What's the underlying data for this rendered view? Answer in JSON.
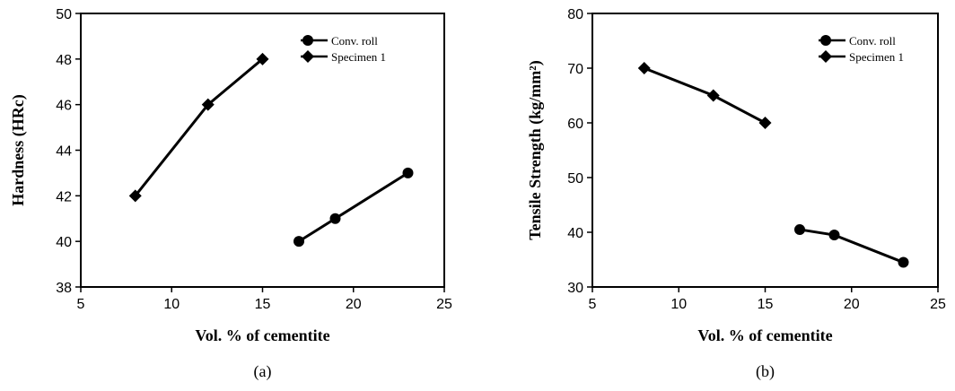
{
  "chart_data": [
    {
      "type": "line",
      "panel_label": "(a)",
      "xlabel": "Vol. %  of cementite",
      "ylabel": "Hardness (HRc)",
      "xlim": [
        5,
        25
      ],
      "ylim": [
        38,
        50
      ],
      "xticks": [
        "5",
        "10",
        "15",
        "20",
        "25"
      ],
      "yticks": [
        "38",
        "40",
        "42",
        "44",
        "46",
        "48",
        "50"
      ],
      "grid": false,
      "legend_position": "top-right",
      "series": [
        {
          "name": "Conv. roll",
          "marker": "circle",
          "points": [
            {
              "x": 17,
              "y": 40
            },
            {
              "x": 19,
              "y": 41
            },
            {
              "x": 23,
              "y": 43
            }
          ]
        },
        {
          "name": "Specimen 1",
          "marker": "diamond",
          "points": [
            {
              "x": 8,
              "y": 42
            },
            {
              "x": 12,
              "y": 46
            },
            {
              "x": 15,
              "y": 48
            }
          ]
        }
      ]
    },
    {
      "type": "line",
      "panel_label": "(b)",
      "xlabel": "Vol. %  of cementite",
      "ylabel": "Tensile Strength (kg/mm²)",
      "xlim": [
        5,
        25
      ],
      "ylim": [
        30,
        80
      ],
      "xticks": [
        "5",
        "10",
        "15",
        "20",
        "25"
      ],
      "yticks": [
        "30",
        "40",
        "50",
        "60",
        "70",
        "80"
      ],
      "grid": false,
      "legend_position": "top-right",
      "series": [
        {
          "name": "Conv. roll",
          "marker": "circle",
          "points": [
            {
              "x": 17,
              "y": 40.5
            },
            {
              "x": 19,
              "y": 39.5
            },
            {
              "x": 23,
              "y": 34.5
            }
          ]
        },
        {
          "name": "Specimen 1",
          "marker": "diamond",
          "points": [
            {
              "x": 8,
              "y": 70
            },
            {
              "x": 12,
              "y": 65
            },
            {
              "x": 15,
              "y": 60
            }
          ]
        }
      ]
    }
  ]
}
